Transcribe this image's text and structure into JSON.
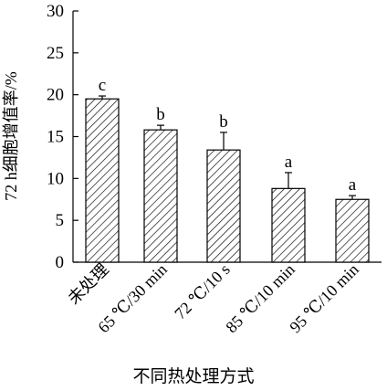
{
  "chart_data": {
    "type": "bar",
    "title": "",
    "xlabel": "不同热处理方式",
    "ylabel": "72 h细胞增值率/%",
    "ylim": [
      0,
      30
    ],
    "yticks": [
      "0",
      "5",
      "10",
      "15",
      "20",
      "25",
      "30"
    ],
    "categories": [
      "未处理",
      "65 ℃/30 min",
      "72 ℃/10 s",
      "85 ℃/10 min",
      "95 ℃/10 min"
    ],
    "values": [
      19.5,
      15.8,
      13.4,
      8.8,
      7.5
    ],
    "errors": [
      0.35,
      0.55,
      2.1,
      1.9,
      0.45
    ],
    "significance": [
      "c",
      "b",
      "b",
      "a",
      "a"
    ],
    "bar_pattern": "diagonal-hatch",
    "grid": false,
    "legend": "none"
  }
}
